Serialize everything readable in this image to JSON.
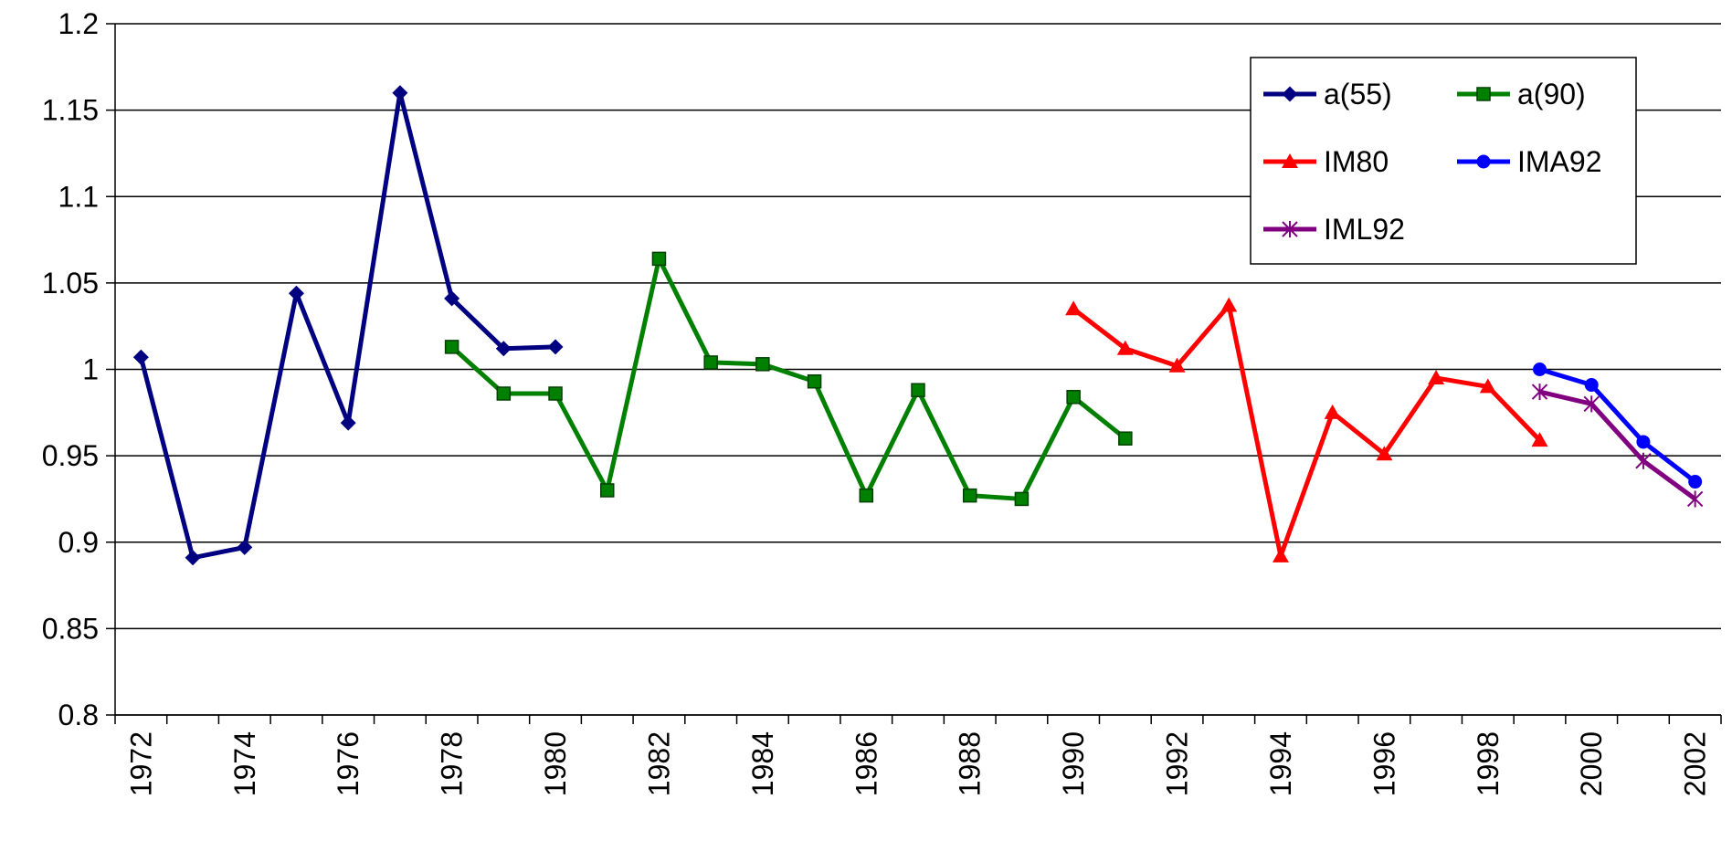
{
  "chart_data": {
    "type": "line",
    "categories": [
      "1972",
      null,
      "1974",
      null,
      "1976",
      null,
      "1978",
      null,
      "1980",
      null,
      "1982",
      null,
      "1984",
      null,
      "1986",
      null,
      "1988",
      null,
      "1990",
      null,
      "1992",
      null,
      "1994",
      null,
      "1996",
      null,
      "1998",
      null,
      "2000",
      null,
      "2002"
    ],
    "series": [
      {
        "name": "a(55)",
        "color": "#000080",
        "marker": "diamond",
        "values": [
          1.007,
          0.891,
          0.897,
          1.044,
          0.969,
          1.16,
          1.041,
          1.012,
          1.013,
          null,
          null,
          null,
          null,
          null,
          null,
          null,
          null,
          null,
          null,
          null,
          null,
          null,
          null,
          null,
          null,
          null,
          null,
          null,
          null,
          null,
          null
        ]
      },
      {
        "name": "a(90)",
        "color": "#008000",
        "marker": "square",
        "values": [
          null,
          null,
          null,
          null,
          null,
          null,
          1.013,
          0.986,
          0.986,
          0.93,
          1.064,
          1.004,
          1.003,
          0.993,
          0.927,
          0.988,
          0.927,
          0.925,
          0.984,
          0.96,
          null,
          null,
          null,
          null,
          null,
          null,
          null,
          null,
          null,
          null,
          null
        ]
      },
      {
        "name": "IM80",
        "color": "#ff0000",
        "marker": "triangle",
        "values": [
          null,
          null,
          null,
          null,
          null,
          null,
          null,
          null,
          null,
          null,
          null,
          null,
          null,
          null,
          null,
          null,
          null,
          null,
          1.035,
          1.012,
          1.002,
          1.037,
          0.892,
          0.975,
          0.951,
          0.995,
          0.99,
          0.959,
          null,
          null,
          null
        ]
      },
      {
        "name": "IMA92",
        "color": "#0000ff",
        "marker": "circle",
        "values": [
          null,
          null,
          null,
          null,
          null,
          null,
          null,
          null,
          null,
          null,
          null,
          null,
          null,
          null,
          null,
          null,
          null,
          null,
          null,
          null,
          null,
          null,
          null,
          null,
          null,
          null,
          null,
          1.0,
          0.991,
          0.958,
          0.935
        ]
      },
      {
        "name": "IML92",
        "color": "#800080",
        "marker": "star",
        "values": [
          null,
          null,
          null,
          null,
          null,
          null,
          null,
          null,
          null,
          null,
          null,
          null,
          null,
          null,
          null,
          null,
          null,
          null,
          null,
          null,
          null,
          null,
          null,
          null,
          null,
          null,
          null,
          0.987,
          0.98,
          0.947,
          0.925
        ]
      }
    ],
    "ylim": [
      0.8,
      1.2
    ],
    "yticks": [
      0.8,
      0.85,
      0.9,
      0.95,
      1,
      1.05,
      1.1,
      1.15,
      1.2
    ],
    "grid": true,
    "legend": "upper right"
  }
}
